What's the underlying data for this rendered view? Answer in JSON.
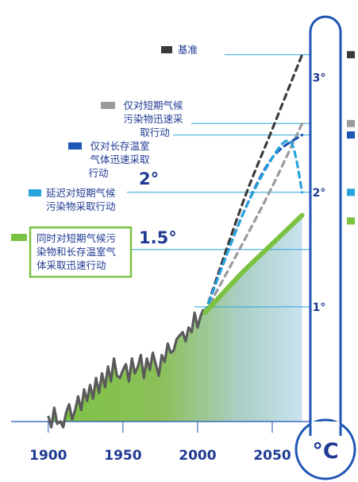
{
  "chart_data": {
    "type": "line",
    "xlim": [
      1890,
      2075
    ],
    "ylim": [
      0,
      3.4
    ],
    "x_ticks": [
      "1900",
      "1950",
      "2000",
      "2050"
    ],
    "unit": "°C",
    "temperature_markers": [
      {
        "label": "1°",
        "value": 1.0
      },
      {
        "label": "2°",
        "value": 2.0
      },
      {
        "label": "3°",
        "value": 3.0
      }
    ],
    "threshold_labels": [
      {
        "label": "2°",
        "value": 2.0
      },
      {
        "label": "1.5°",
        "value": 1.5
      }
    ],
    "series": [
      {
        "name": "基准",
        "color": "#3a3a3a",
        "style": "dashed",
        "points": [
          [
            2005,
            0.95
          ],
          [
            2030,
            1.9
          ],
          [
            2050,
            2.55
          ],
          [
            2070,
            3.2
          ]
        ]
      },
      {
        "name": "仅对短期气候污染物迅速采取行动",
        "color": "#9a9a9a",
        "style": "dashed",
        "points": [
          [
            2005,
            0.95
          ],
          [
            2030,
            1.55
          ],
          [
            2050,
            2.05
          ],
          [
            2070,
            2.6
          ]
        ]
      },
      {
        "name": "仅对长存温室气体迅速采取行动",
        "color": "#1f55b5",
        "style": "dashed",
        "points": [
          [
            2005,
            0.95
          ],
          [
            2030,
            1.8
          ],
          [
            2050,
            2.3
          ],
          [
            2070,
            2.5
          ]
        ]
      },
      {
        "name": "延迟对短期气候污染物采取行动",
        "color": "#29a3dc",
        "style": "dashed",
        "points": [
          [
            2005,
            0.95
          ],
          [
            2030,
            1.8
          ],
          [
            2050,
            2.3
          ],
          [
            2060,
            2.45
          ],
          [
            2065,
            2.35
          ],
          [
            2070,
            2.0
          ]
        ]
      },
      {
        "name": "同时对短期气候污染物和长存温室气体采取迅速行动",
        "color": "#7cc242",
        "style": "solid",
        "points": [
          [
            2005,
            0.95
          ],
          [
            2030,
            1.3
          ],
          [
            2050,
            1.55
          ],
          [
            2070,
            1.8
          ]
        ]
      }
    ],
    "observed": {
      "color": "#5a5a5a",
      "x": [
        1900,
        1902,
        1904,
        1906,
        1908,
        1910,
        1912,
        1914,
        1916,
        1918,
        1920,
        1922,
        1924,
        1926,
        1928,
        1930,
        1932,
        1934,
        1936,
        1938,
        1940,
        1942,
        1944,
        1946,
        1948,
        1950,
        1952,
        1954,
        1956,
        1958,
        1960,
        1962,
        1964,
        1966,
        1968,
        1970,
        1972,
        1974,
        1976,
        1978,
        1980,
        1982,
        1984,
        1986,
        1988,
        1990,
        1992,
        1994,
        1996,
        1998,
        2000,
        2002,
        2004
      ],
      "y": [
        0.05,
        -0.05,
        0.12,
        -0.02,
        0.0,
        -0.05,
        0.08,
        0.15,
        0.02,
        0.1,
        0.22,
        0.1,
        0.28,
        0.18,
        0.32,
        0.2,
        0.38,
        0.25,
        0.42,
        0.3,
        0.48,
        0.35,
        0.55,
        0.4,
        0.38,
        0.45,
        0.5,
        0.35,
        0.55,
        0.42,
        0.48,
        0.58,
        0.38,
        0.55,
        0.45,
        0.6,
        0.5,
        0.4,
        0.58,
        0.52,
        0.68,
        0.6,
        0.62,
        0.72,
        0.75,
        0.78,
        0.7,
        0.82,
        0.78,
        0.95,
        0.82,
        0.92,
        0.98
      ]
    }
  }
}
